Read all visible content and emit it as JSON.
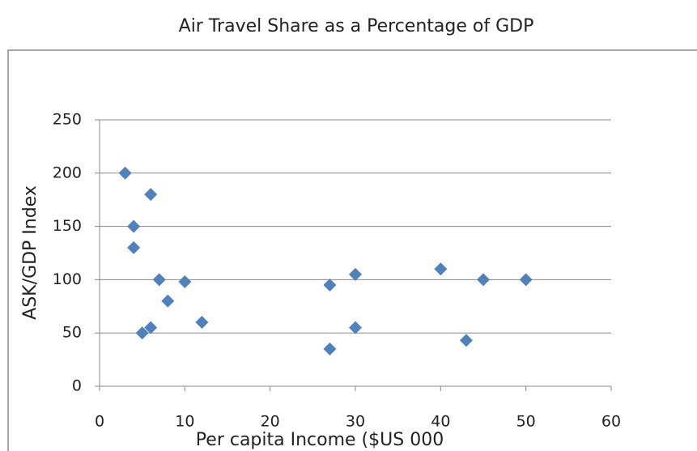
{
  "chart_data": {
    "type": "scatter",
    "title": "Air Travel Share as a Percentage of GDP",
    "xlabel": "Per capita Income ($US 000",
    "ylabel": "ASK/GDP Index",
    "color": "#4f81bd",
    "grid": true,
    "xlim": [
      0,
      60
    ],
    "xticks": [
      0,
      10,
      20,
      30,
      40,
      50,
      60
    ],
    "ylim": [
      0,
      250
    ],
    "yticks": [
      0,
      50,
      100,
      150,
      200,
      250
    ],
    "x": [
      3,
      6,
      4,
      4,
      7,
      10,
      8,
      12,
      5,
      6,
      27,
      30,
      30,
      27,
      40,
      45,
      50,
      43
    ],
    "values": [
      200,
      180,
      150,
      130,
      100,
      98,
      80,
      60,
      50,
      55,
      95,
      105,
      55,
      35,
      110,
      100,
      100,
      43
    ]
  }
}
